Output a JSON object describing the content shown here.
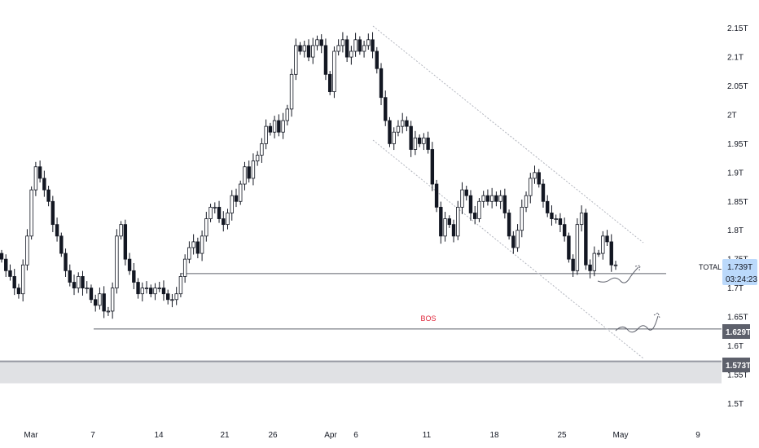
{
  "colors": {
    "candle": "#131722",
    "candle_up": "#ffffff",
    "level_line": "#5d606b",
    "channel": "#b2b5be",
    "bos_text": "#e0283c",
    "zone_fill": "#e0e1e4",
    "price_tag": "#bbd9fb",
    "level_tag": "#5d606b"
  },
  "chart_data": {
    "type": "candlestick",
    "y_axis": {
      "ticks": [
        "2.15T",
        "2.1T",
        "2.05T",
        "2T",
        "1.95T",
        "1.9T",
        "1.85T",
        "1.8T",
        "1.75T",
        "1.7T",
        "1.65T",
        "1.6T",
        "1.55T",
        "1.5T"
      ],
      "range": [
        1.485,
        2.165
      ],
      "unit": "T"
    },
    "x_axis": {
      "ticks": [
        "Mar",
        "7",
        "14",
        "21",
        "26",
        "Apr",
        "6",
        "11",
        "18",
        "25",
        "May",
        "9"
      ]
    },
    "series": [
      {
        "values": [
          1.75,
          1.73,
          1.72,
          1.7,
          1.69,
          1.74,
          1.79,
          1.87,
          1.91,
          1.89,
          1.87,
          1.85,
          1.81,
          1.79,
          1.76,
          1.73,
          1.71,
          1.7,
          1.72,
          1.7,
          1.7,
          1.68,
          1.67,
          1.69,
          1.66,
          1.66,
          1.7,
          1.79,
          1.81,
          1.75,
          1.73,
          1.71,
          1.69,
          1.7,
          1.7,
          1.69,
          1.7,
          1.7,
          1.69,
          1.68,
          1.68,
          1.69,
          1.72,
          1.75,
          1.77,
          1.78,
          1.76,
          1.79,
          1.82,
          1.84,
          1.84,
          1.82,
          1.81,
          1.83,
          1.86,
          1.85,
          1.88,
          1.91,
          1.89,
          1.92,
          1.93,
          1.95,
          1.98,
          1.97,
          1.99,
          1.97,
          1.99,
          2.01,
          2.07,
          2.12,
          2.11,
          2.12,
          2.1,
          2.12,
          2.13,
          2.12,
          2.07,
          2.04,
          2.11,
          2.12,
          2.13,
          2.1,
          2.11,
          2.13,
          2.11,
          2.12,
          2.13,
          2.11,
          2.08,
          2.03,
          1.99,
          1.95,
          1.97,
          1.98,
          1.99,
          1.98,
          1.94,
          1.96,
          1.95,
          1.96,
          1.94,
          1.88,
          1.84,
          1.79,
          1.82,
          1.81,
          1.79,
          1.84,
          1.87,
          1.86,
          1.83,
          1.82,
          1.85,
          1.86,
          1.85,
          1.86,
          1.85,
          1.86,
          1.83,
          1.79,
          1.77,
          1.8,
          1.84,
          1.86,
          1.89,
          1.9,
          1.88,
          1.85,
          1.83,
          1.82,
          1.82,
          1.81,
          1.79,
          1.75,
          1.73,
          1.81,
          1.83,
          1.74,
          1.73,
          1.76,
          1.76,
          1.79,
          1.78,
          1.74,
          1.74
        ]
      }
    ],
    "levels": [
      {
        "value": 1.725,
        "label": ""
      },
      {
        "value": 1.629,
        "label": "1.629T"
      },
      {
        "value": 1.573,
        "label": "1.573T"
      }
    ],
    "zone": {
      "from": 1.535,
      "to": 1.572
    },
    "annotation": {
      "text": "BOS",
      "value": 1.643
    },
    "last_price": {
      "symbol": "TOTAL",
      "value": "1.739T",
      "countdown": "03:24:23"
    },
    "grid": false
  }
}
